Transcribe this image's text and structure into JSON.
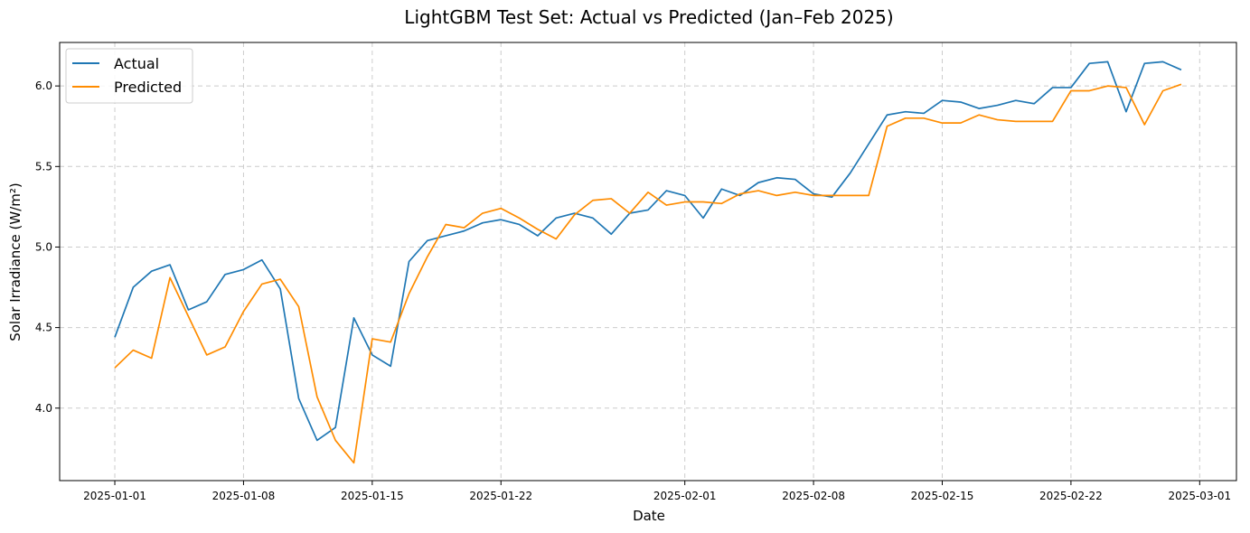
{
  "chart_data": {
    "type": "line",
    "title": "LightGBM Test Set: Actual vs Predicted (Jan–Feb 2025)",
    "xlabel": "Date",
    "ylabel": "Solar Irradiance (W/m²)",
    "x_start": "2025-01-01",
    "xlim": [
      "2024-12-29",
      "2025-03-03"
    ],
    "ylim": [
      3.55,
      6.27
    ],
    "x_ticks": [
      "2025-01-01",
      "2025-01-08",
      "2025-01-15",
      "2025-01-22",
      "2025-02-01",
      "2025-02-08",
      "2025-02-15",
      "2025-02-22",
      "2025-03-01"
    ],
    "y_ticks": [
      "4.0",
      "4.5",
      "5.0",
      "5.5",
      "6.0"
    ],
    "grid": true,
    "legend_position": "top-left",
    "series": [
      {
        "name": "Actual",
        "color": "#1f77b4",
        "values": [
          4.44,
          4.75,
          4.85,
          4.89,
          4.61,
          4.66,
          4.83,
          4.86,
          4.92,
          4.74,
          4.06,
          3.8,
          3.88,
          4.56,
          4.33,
          4.26,
          4.91,
          5.04,
          5.07,
          5.1,
          5.15,
          5.17,
          5.14,
          5.07,
          5.18,
          5.21,
          5.18,
          5.08,
          5.21,
          5.23,
          5.35,
          5.32,
          5.18,
          5.36,
          5.32,
          5.4,
          5.43,
          5.42,
          5.33,
          5.31,
          5.46,
          5.64,
          5.82,
          5.84,
          5.83,
          5.91,
          5.9,
          5.86,
          5.88,
          5.91,
          5.89,
          5.99,
          5.99,
          6.14,
          6.15,
          5.84,
          6.14,
          6.15,
          6.1
        ]
      },
      {
        "name": "Predicted",
        "color": "#ff8c00",
        "values": [
          4.25,
          4.36,
          4.31,
          4.81,
          4.57,
          4.33,
          4.38,
          4.6,
          4.77,
          4.8,
          4.63,
          4.07,
          3.8,
          3.66,
          4.43,
          4.41,
          4.71,
          4.94,
          5.14,
          5.12,
          5.21,
          5.24,
          5.18,
          5.11,
          5.05,
          5.2,
          5.29,
          5.3,
          5.21,
          5.34,
          5.26,
          5.28,
          5.28,
          5.27,
          5.33,
          5.35,
          5.32,
          5.34,
          5.32,
          5.32,
          5.32,
          5.32,
          5.75,
          5.8,
          5.8,
          5.77,
          5.77,
          5.82,
          5.79,
          5.78,
          5.78,
          5.78,
          5.97,
          5.97,
          6.0,
          5.99,
          5.76,
          5.97,
          6.01
        ]
      }
    ]
  }
}
